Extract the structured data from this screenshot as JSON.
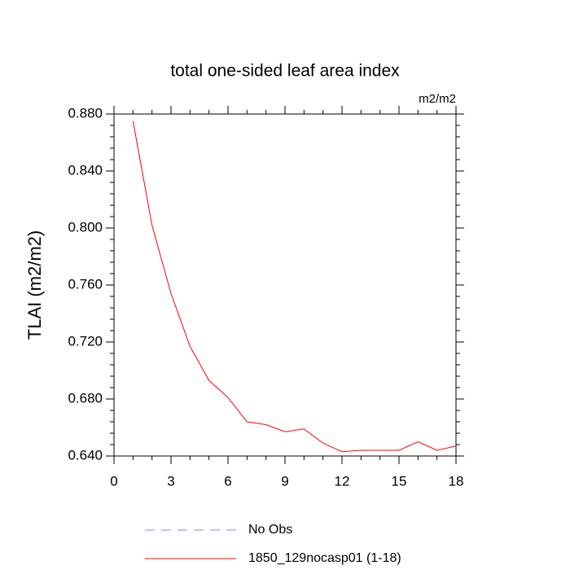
{
  "chart_data": {
    "type": "line",
    "title": "total one-sided leaf area index",
    "units": "m2/m2",
    "y_label": "TLAI  (m2/m2)",
    "x": [
      1,
      2,
      3,
      4,
      5,
      6,
      7,
      8,
      9,
      10,
      11,
      12,
      13,
      14,
      15,
      16,
      17,
      18
    ],
    "series": [
      {
        "name": "No Obs",
        "color": "#8080ff",
        "dashed": true,
        "values": [
          null,
          null,
          null,
          null,
          null,
          null,
          null,
          null,
          null,
          null,
          null,
          null,
          null,
          null,
          null,
          null,
          null,
          null
        ]
      },
      {
        "name": "1850_129nocasp01 (1-18)",
        "color": "#ff0000",
        "dashed": false,
        "values": [
          0.875,
          0.802,
          0.754,
          0.717,
          0.693,
          0.681,
          0.664,
          0.662,
          0.657,
          0.659,
          0.649,
          0.643,
          0.644,
          0.644,
          0.644,
          0.65,
          0.644,
          0.647
        ]
      }
    ],
    "xlim": [
      0,
      18
    ],
    "xticks": [
      0,
      3,
      6,
      9,
      12,
      15,
      18
    ],
    "ylim": [
      0.64,
      0.88
    ],
    "yticks": [
      {
        "value": 0.64,
        "label": "0.640"
      },
      {
        "value": 0.68,
        "label": "0.680"
      },
      {
        "value": 0.72,
        "label": "0.720"
      },
      {
        "value": 0.76,
        "label": "0.760"
      },
      {
        "value": 0.8,
        "label": "0.800"
      },
      {
        "value": 0.84,
        "label": "0.840"
      },
      {
        "value": 0.88,
        "label": "0.880"
      }
    ]
  }
}
